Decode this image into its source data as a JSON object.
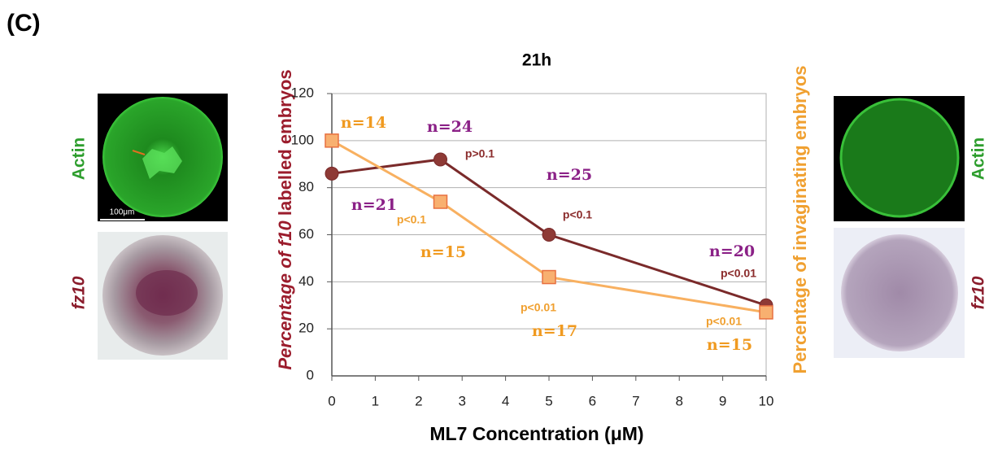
{
  "panel_label": "(C)",
  "images": [
    {
      "label": "Actin",
      "label_color": "#2e9e2e",
      "scale_bar": "100μm"
    },
    {
      "label": "fz10",
      "label_color": "#8b1c2c"
    },
    {
      "label": "Actin",
      "label_color": "#2e9e2e"
    },
    {
      "label": "fz10",
      "label_color": "#8b1c2c"
    }
  ],
  "chart_data": {
    "type": "line",
    "title": "21h",
    "x_label": "ML7 Concentration (μM)",
    "y_label": [
      "Percentage of",
      "f10",
      "labelled embryos"
    ],
    "y_label_color": "#9b1c2c",
    "y2_label": "Percentage of invaginating embryos",
    "y2_label_color": "#f0a030",
    "x": [
      0,
      2.5,
      5,
      10
    ],
    "xlim": [
      0,
      10
    ],
    "xticks": [
      0,
      1,
      2,
      3,
      4,
      5,
      6,
      7,
      8,
      9,
      10
    ],
    "ylim": [
      0,
      120
    ],
    "yticks": [
      0,
      20,
      40,
      60,
      80,
      100,
      120
    ],
    "grid": true,
    "series": [
      {
        "color": "#7a2a2a",
        "marker": "circle",
        "marker_color": "#8e3a36",
        "values": [
          86,
          92,
          60,
          30
        ],
        "n_labels": [
          "n=21",
          "n=24",
          "n=25",
          "n=20"
        ],
        "n_color": "#8b2187",
        "p_labels": [
          null,
          "p>0.1",
          "p<0.1",
          "p<0.01"
        ],
        "p_color": "#8b2c2c"
      },
      {
        "color": "#f8b060",
        "marker": "square",
        "marker_color": "#f8b070",
        "values": [
          100,
          74,
          42,
          27
        ],
        "n_labels": [
          "n=14",
          "n=15",
          "n=17",
          "n=15"
        ],
        "n_color": "#f09a20",
        "p_labels": [
          null,
          "p<0.1",
          "p<0.01",
          "p<0.01"
        ],
        "p_color": "#f0a030"
      }
    ]
  }
}
